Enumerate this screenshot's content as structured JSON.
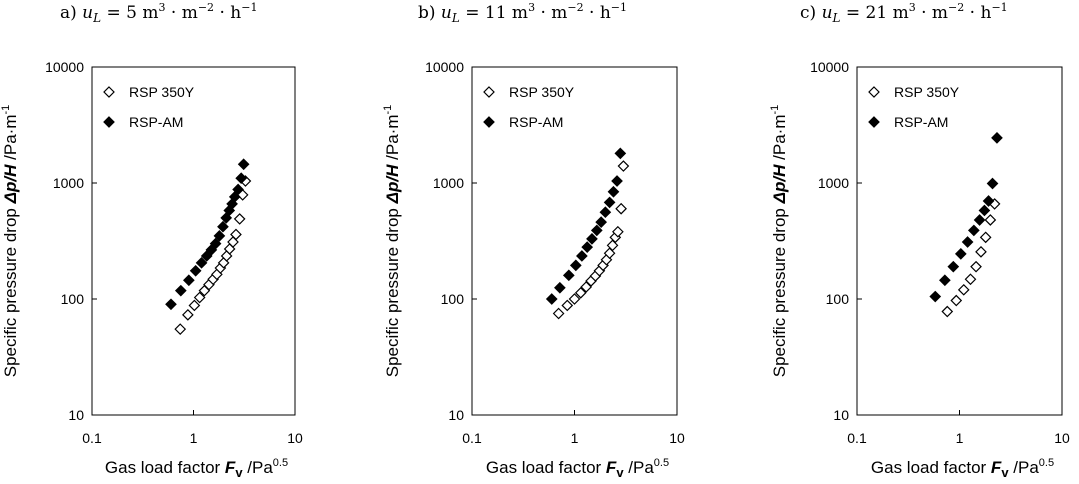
{
  "chart_data": [
    {
      "type": "scatter",
      "title": "a) uL = 5 m3 · m−2 · h−1",
      "title_parts": {
        "prefix": "a)",
        "var": "u",
        "sub": "L",
        "value": "= 5 m",
        "exp1": "3",
        "mid": "· m",
        "exp2": "−2",
        "tail": "· h",
        "exp3": "−1"
      },
      "xlabel": "Gas load factor Fv /Pa0.5",
      "ylabel": "Specific pressure drop Δp/H /Pa·m-1",
      "xscale": "log",
      "yscale": "log",
      "xlim": [
        0.1,
        10
      ],
      "ylim": [
        10,
        10000
      ],
      "xticks": [
        "0.1",
        "1",
        "10"
      ],
      "yticks": [
        "10",
        "100",
        "1000",
        "10000"
      ],
      "legend_position": "top-left",
      "series": [
        {
          "name": "RSP 350Y",
          "marker": "open-diamond",
          "x": [
            0.74,
            0.88,
            1.02,
            1.15,
            1.28,
            1.42,
            1.56,
            1.7,
            1.84,
            1.98,
            2.12,
            2.27,
            2.45,
            2.62,
            2.85,
            3.05,
            3.25
          ],
          "y": [
            55,
            73,
            88,
            103,
            118,
            133,
            148,
            163,
            185,
            205,
            235,
            270,
            310,
            360,
            490,
            790,
            1040
          ]
        },
        {
          "name": "RSP-AM",
          "marker": "filled-diamond",
          "x": [
            0.6,
            0.75,
            0.9,
            1.05,
            1.2,
            1.35,
            1.5,
            1.65,
            1.8,
            1.95,
            2.1,
            2.25,
            2.4,
            2.55,
            2.75,
            2.95,
            3.12
          ],
          "y": [
            90,
            118,
            145,
            175,
            205,
            235,
            265,
            300,
            350,
            420,
            500,
            580,
            660,
            760,
            880,
            1100,
            1450
          ]
        }
      ]
    },
    {
      "type": "scatter",
      "title": "b) uL = 11 m3 · m−2 · h−1",
      "title_parts": {
        "prefix": "b)",
        "var": "u",
        "sub": "L",
        "value": "= 11 m",
        "exp1": "3",
        "mid": "· m",
        "exp2": "−2",
        "tail": "· h",
        "exp3": "−1"
      },
      "xlabel": "Gas load factor Fv /Pa0.5",
      "ylabel": "Specific pressure drop Δp/H /Pa·m-1",
      "xscale": "log",
      "yscale": "log",
      "xlim": [
        0.1,
        10
      ],
      "ylim": [
        10,
        10000
      ],
      "xticks": [
        "0.1",
        "1",
        "10"
      ],
      "yticks": [
        "10",
        "100",
        "1000",
        "10000"
      ],
      "legend_position": "top-left",
      "series": [
        {
          "name": "RSP 350Y",
          "marker": "open-diamond",
          "x": [
            0.7,
            0.85,
            1.0,
            1.15,
            1.3,
            1.45,
            1.6,
            1.75,
            1.9,
            2.05,
            2.2,
            2.35,
            2.5,
            2.65,
            2.85,
            3.0
          ],
          "y": [
            75,
            88,
            100,
            113,
            127,
            143,
            158,
            175,
            195,
            218,
            248,
            290,
            340,
            380,
            600,
            1400
          ]
        },
        {
          "name": "RSP-AM",
          "marker": "filled-diamond",
          "x": [
            0.6,
            0.72,
            0.88,
            1.03,
            1.18,
            1.33,
            1.48,
            1.65,
            1.82,
            2.0,
            2.2,
            2.4,
            2.6,
            2.8
          ],
          "y": [
            100,
            125,
            160,
            195,
            235,
            280,
            330,
            390,
            460,
            560,
            680,
            840,
            1040,
            1800
          ]
        }
      ]
    },
    {
      "type": "scatter",
      "title": "c) uL = 21 m3 · m−2 · h−1",
      "title_parts": {
        "prefix": "c)",
        "var": "u",
        "sub": "L",
        "value": "= 21 m",
        "exp1": "3",
        "mid": "· m",
        "exp2": "−2",
        "tail": "· h",
        "exp3": "−1"
      },
      "xlabel": "Gas load factor Fv /Pa0.5",
      "ylabel": "Specific pressure drop Δp/H /Pa·m-1",
      "xscale": "log",
      "yscale": "log",
      "xlim": [
        0.1,
        10
      ],
      "ylim": [
        10,
        10000
      ],
      "xticks": [
        "0.1",
        "1",
        "10"
      ],
      "yticks": [
        "10",
        "100",
        "1000",
        "10000"
      ],
      "legend_position": "top-left",
      "series": [
        {
          "name": "RSP 350Y",
          "marker": "open-diamond",
          "x": [
            0.76,
            0.93,
            1.1,
            1.28,
            1.45,
            1.62,
            1.8,
            2.0,
            2.2
          ],
          "y": [
            78,
            97,
            120,
            148,
            190,
            255,
            340,
            480,
            660
          ]
        },
        {
          "name": "RSP-AM",
          "marker": "filled-diamond",
          "x": [
            0.58,
            0.72,
            0.87,
            1.03,
            1.2,
            1.38,
            1.57,
            1.75,
            1.92,
            2.1,
            2.32
          ],
          "y": [
            105,
            145,
            190,
            245,
            310,
            390,
            480,
            580,
            700,
            990,
            2450
          ]
        }
      ]
    }
  ],
  "legend_labels": [
    "RSP 350Y",
    "RSP-AM"
  ],
  "axis_text": {
    "xlabel_prefix": "Gas load factor ",
    "xlabel_var": "F",
    "xlabel_var_sub": "v",
    "xlabel_unit": " /Pa",
    "xlabel_exp": "0.5",
    "ylabel_prefix": "Specific pressure drop ",
    "ylabel_var": "Δp/H",
    "ylabel_unit": " /Pa·m",
    "ylabel_exp": "-1"
  }
}
